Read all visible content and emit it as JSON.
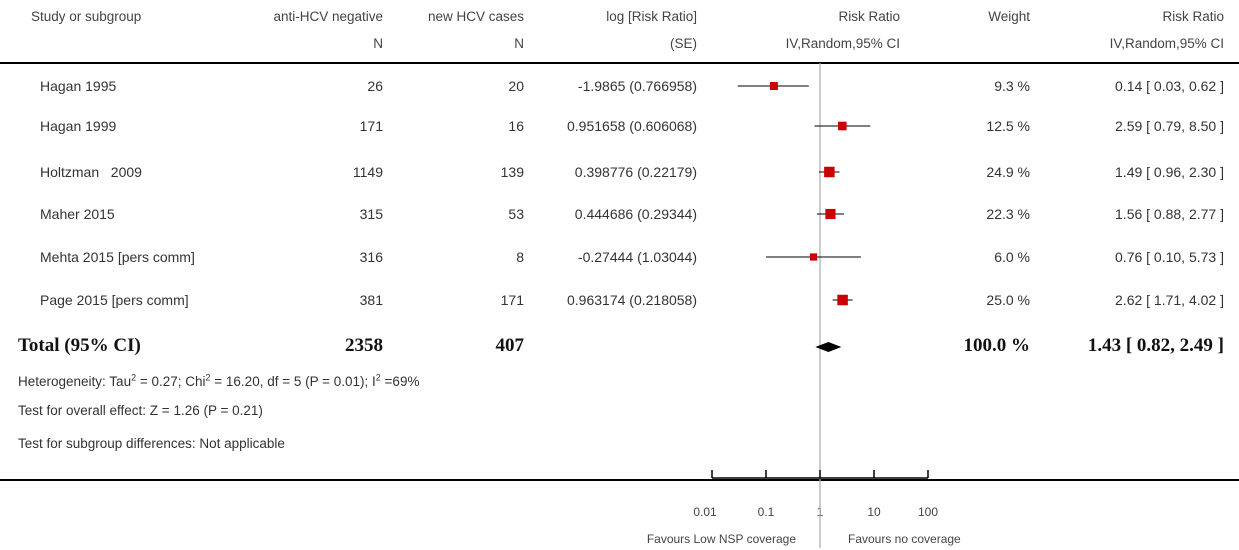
{
  "headers": {
    "study": "Study or subgroup",
    "negative": "anti-HCV negative",
    "negative_sub": "N",
    "cases": "new HCV cases",
    "cases_sub": "N",
    "logrr": "log [Risk Ratio]",
    "logrr_sub": "(SE)",
    "rr_plot": "Risk Ratio",
    "rr_plot_sub": "IV,Random,95% CI",
    "weight": "Weight",
    "rr": "Risk Ratio",
    "rr_sub": "IV,Random,95% CI"
  },
  "rows": [
    {
      "study": "Hagan 1995",
      "n_negative": "26",
      "n_cases": "20",
      "logrr": "-1.9865 (0.766958)",
      "weight": "9.3 %",
      "ci": "0.14 [ 0.03, 0.62 ]"
    },
    {
      "study": "Hagan 1999",
      "n_negative": "171",
      "n_cases": "16",
      "logrr": "0.951658 (0.606068)",
      "weight": "12.5 %",
      "ci": "2.59 [ 0.79, 8.50 ]"
    },
    {
      "study": "Holtzman   2009",
      "n_negative": "1149",
      "n_cases": "139",
      "logrr": "0.398776 (0.22179)",
      "weight": "24.9 %",
      "ci": "1.49 [ 0.96, 2.30 ]"
    },
    {
      "study": "Maher 2015",
      "n_negative": "315",
      "n_cases": "53",
      "logrr": "0.444686 (0.29344)",
      "weight": "22.3 %",
      "ci": "1.56 [ 0.88, 2.77 ]"
    },
    {
      "study": "Mehta 2015 [pers comm]",
      "n_negative": "316",
      "n_cases": "8",
      "logrr": "-0.27444 (1.03044)",
      "weight": "6.0 %",
      "ci": "0.76 [ 0.10, 5.73 ]"
    },
    {
      "study": "Page 2015 [pers comm]",
      "n_negative": "381",
      "n_cases": "171",
      "logrr": "0.963174 (0.218058)",
      "weight": "25.0 %",
      "ci": "2.62 [ 1.71, 4.02 ]"
    }
  ],
  "total": {
    "label": "Total (95% CI)",
    "n_negative": "2358",
    "n_cases": "407",
    "weight": "100.0 %",
    "ci": "1.43 [ 0.82, 2.49 ]"
  },
  "notes": {
    "heterogeneity": {
      "p1": "Heterogeneity: Tau",
      "s1": "2",
      "p2": " = 0.27; Chi",
      "s2": "2",
      "p3": " = 16.20, df = 5 (P = 0.01); I",
      "s3": "2",
      "p4": " =69%"
    },
    "overall": "Test for overall effect: Z = 1.26 (P = 0.21)",
    "subgroup": "Test for subgroup differences: Not applicable"
  },
  "axis": {
    "ticks": [
      "0.01",
      "0.1",
      "1",
      "10",
      "100"
    ],
    "left_label": "Favours Low NSP coverage",
    "right_label": "Favours no coverage"
  },
  "colors": {
    "point": "#cc0000",
    "line": "#000000",
    "axis": "#000000",
    "divider": "#aaaaaa"
  },
  "chart_data": {
    "type": "forest",
    "scale": "log",
    "xlim": [
      0.01,
      100
    ],
    "reference": 1,
    "studies": [
      {
        "name": "Hagan 1995",
        "rr": 0.14,
        "lower": 0.03,
        "upper": 0.62,
        "weight": 9.3
      },
      {
        "name": "Hagan 1999",
        "rr": 2.59,
        "lower": 0.79,
        "upper": 8.5,
        "weight": 12.5
      },
      {
        "name": "Holtzman   2009",
        "rr": 1.49,
        "lower": 0.96,
        "upper": 2.3,
        "weight": 24.9
      },
      {
        "name": "Maher 2015",
        "rr": 1.56,
        "lower": 0.88,
        "upper": 2.77,
        "weight": 22.3
      },
      {
        "name": "Mehta 2015 [pers comm]",
        "rr": 0.76,
        "lower": 0.1,
        "upper": 5.73,
        "weight": 6.0
      },
      {
        "name": "Page 2015 [pers comm]",
        "rr": 2.62,
        "lower": 1.71,
        "upper": 4.02,
        "weight": 25.0
      }
    ],
    "pooled": {
      "rr": 1.43,
      "lower": 0.82,
      "upper": 2.49,
      "weight": 100.0
    }
  }
}
